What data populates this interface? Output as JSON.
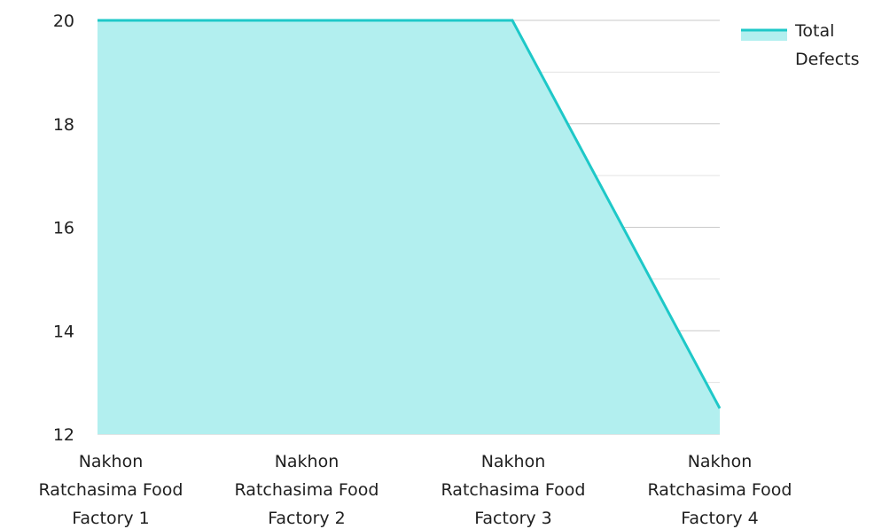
{
  "chart_data": {
    "type": "area",
    "categories": [
      "Nakhon Ratchasima Food Factory 1",
      "Nakhon Ratchasima Food Factory 2",
      "Nakhon Ratchasima Food Factory 3",
      "Nakhon Ratchasima Food Factory 4"
    ],
    "category_lines": [
      [
        "Nakhon",
        "Ratchasima Food",
        "Factory 1"
      ],
      [
        "Nakhon",
        "Ratchasima Food",
        "Factory 2"
      ],
      [
        "Nakhon",
        "Ratchasima Food",
        "Factory 3"
      ],
      [
        "Nakhon",
        "Ratchasima Food",
        "Factory 4"
      ]
    ],
    "series": [
      {
        "name": "Total Defects",
        "name_lines": [
          "Total",
          "Defects"
        ],
        "values": [
          20,
          20,
          20,
          12.5
        ],
        "line_color": "#1ec8c8",
        "fill_color": "#b2efef"
      }
    ],
    "yticks": [
      "12",
      "14",
      "16",
      "18",
      "20"
    ],
    "ylim": [
      12,
      20
    ],
    "title": "",
    "xlabel": "",
    "ylabel": "",
    "grid": true,
    "legend_position": "top-right"
  }
}
